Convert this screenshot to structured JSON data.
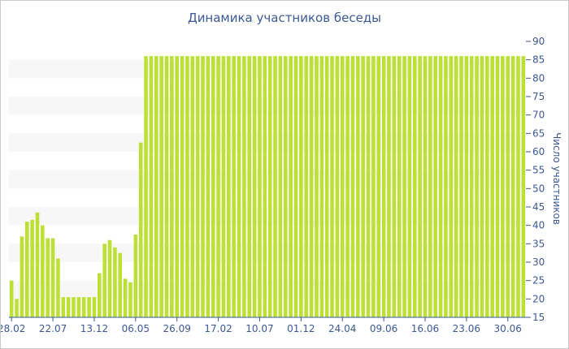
{
  "chart_data": {
    "type": "bar",
    "title": "Динамика участников беседы",
    "ylabel": "Число участников",
    "xlabel": "",
    "ylim": [
      15,
      90
    ],
    "y_ticks": [
      15,
      20,
      25,
      30,
      35,
      40,
      45,
      50,
      55,
      60,
      65,
      70,
      75,
      80,
      85,
      90
    ],
    "x_tick_labels": [
      "28.02",
      "22.07",
      "13.12",
      "06.05",
      "26.09",
      "17.02",
      "10.07",
      "01.12",
      "24.04",
      "09.06",
      "16.06",
      "23.06",
      "30.06"
    ],
    "x_tick_positions": [
      0,
      8,
      16,
      24,
      32,
      40,
      48,
      56,
      64,
      72,
      80,
      88,
      96
    ],
    "grid": "alternating horizontal bands",
    "bar_color": "#bde036",
    "values": [
      25,
      20,
      37,
      41,
      41.5,
      43.5,
      40,
      36.5,
      36.5,
      31,
      20.5,
      20.5,
      20.5,
      20.5,
      20.5,
      20.5,
      20.5,
      27,
      35,
      36,
      34,
      32.5,
      25.5,
      24.5,
      37.5,
      62.5,
      86,
      86,
      86,
      86,
      86,
      86,
      86,
      86,
      86,
      86,
      86,
      86,
      86,
      86,
      86,
      86,
      86,
      86,
      86,
      86,
      86,
      86,
      86,
      86,
      86,
      86,
      86,
      86,
      86,
      86,
      86,
      86,
      86,
      86,
      86,
      86,
      86,
      86,
      86,
      86,
      86,
      86,
      86,
      86,
      86,
      86,
      86,
      86,
      86,
      86,
      86,
      86,
      86,
      86,
      86,
      86,
      86,
      86,
      86,
      86,
      86,
      86,
      86,
      86,
      86,
      86,
      86,
      86,
      86,
      86,
      86,
      86,
      86,
      86
    ]
  }
}
